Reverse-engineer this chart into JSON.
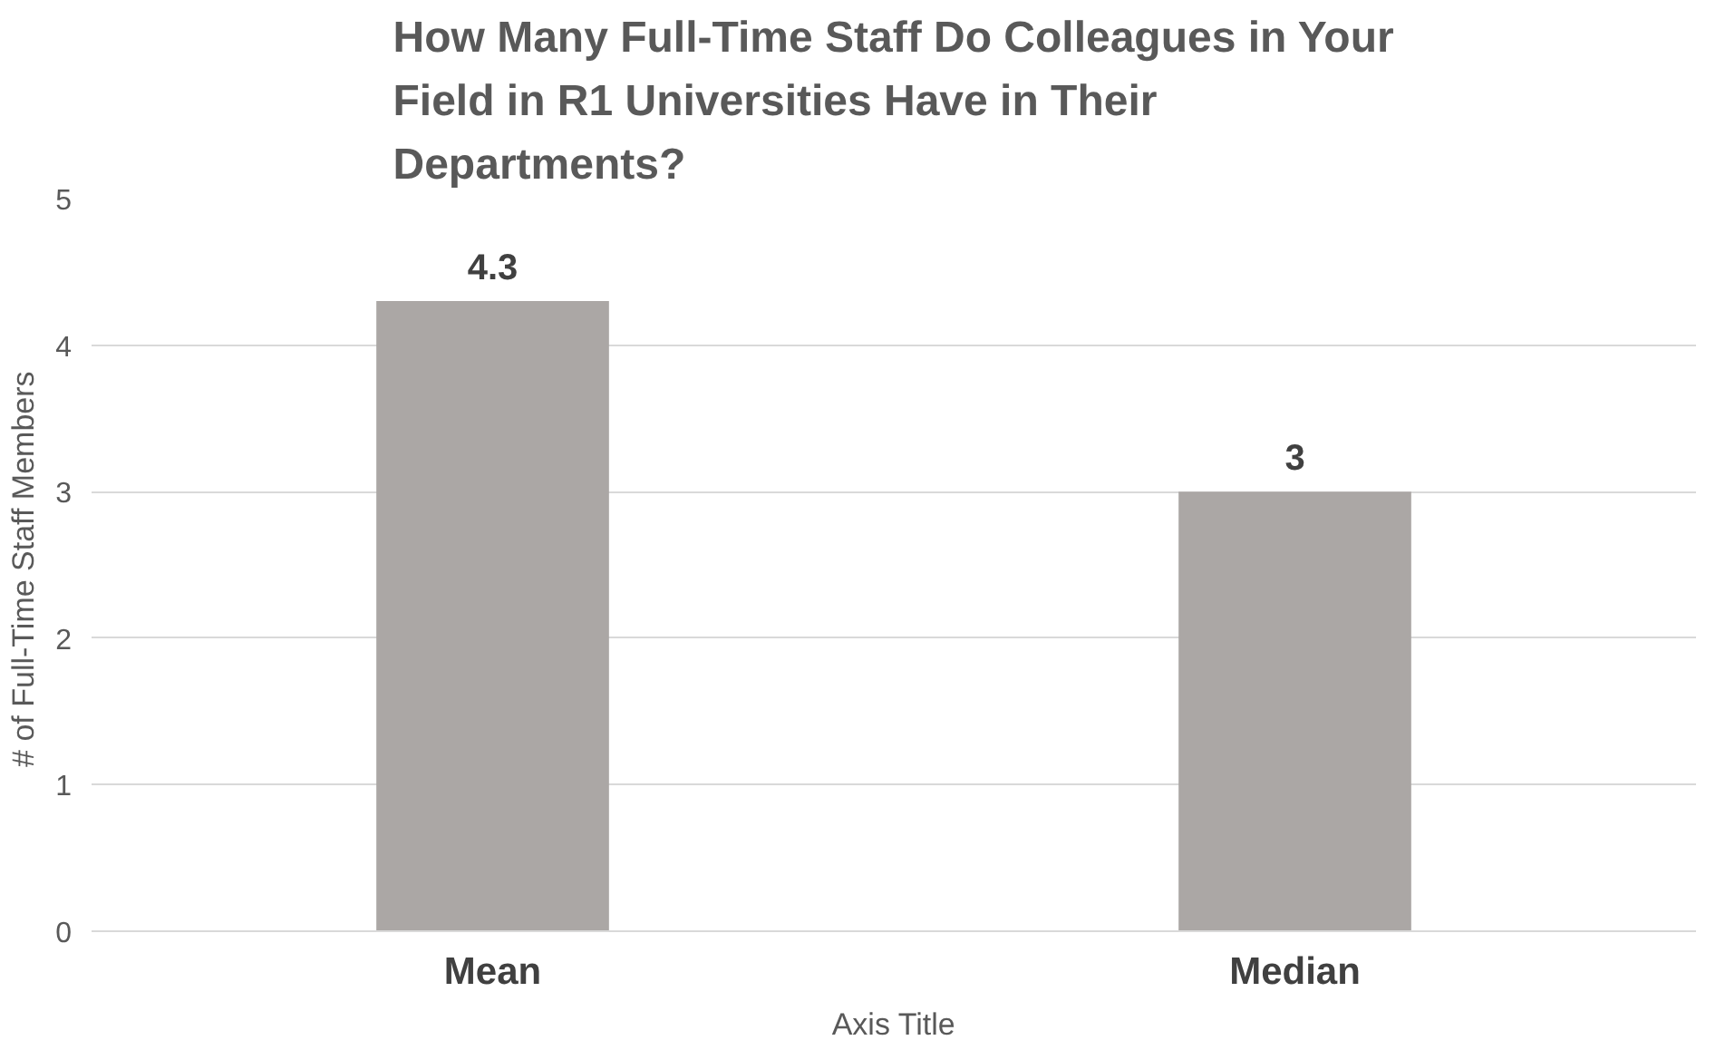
{
  "chart_data": {
    "type": "bar",
    "title": "How Many Full-Time Staff Do Colleagues in Your Field in R1 Universities Have in Their Departments?",
    "xlabel": "Axis Title",
    "ylabel": "# of Full-Time Staff  Members",
    "categories": [
      "Mean",
      "Median"
    ],
    "values": [
      4.3,
      3
    ],
    "color": "#aba7a5",
    "ylim": [
      0,
      5
    ],
    "yticks": [
      0,
      1,
      2,
      3,
      4,
      5
    ],
    "grid": "y",
    "data_labels": true
  }
}
